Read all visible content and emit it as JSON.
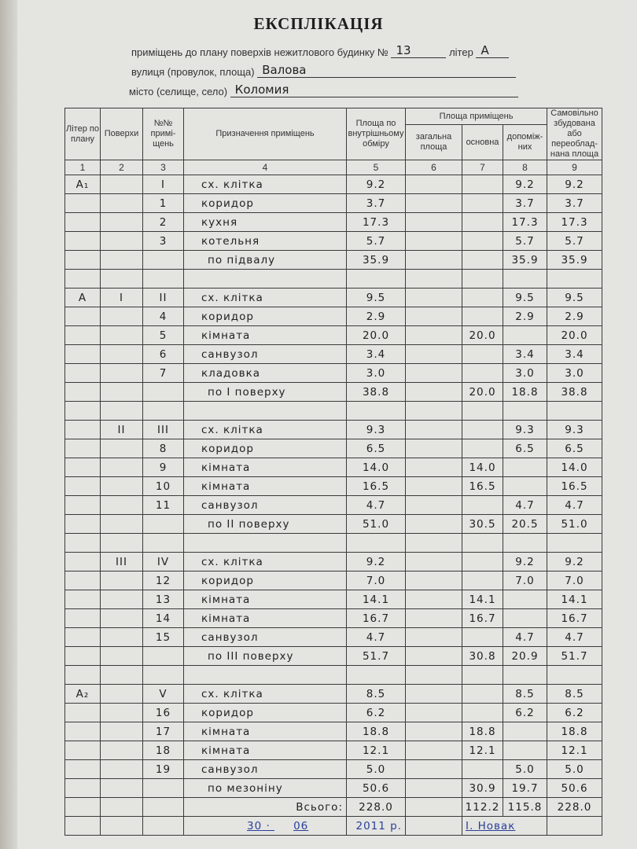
{
  "title": "ЕКСПЛІКАЦІЯ",
  "header": {
    "line1_label": "приміщень до плану поверхів нежитлового будинку №",
    "building_no": "13",
    "liter_label": "літер",
    "liter": "А",
    "street_label": "вулиця (провулок, площа)",
    "street": "Валова",
    "city_label": "місто (селище, село)",
    "city": "Коломия"
  },
  "table": {
    "headers": {
      "c1": "Літер по плану",
      "c2": "Поверхи",
      "c3": "№№ примі-щень",
      "c4": "Призначення приміщень",
      "c5": "Площа по внутрішньому обміру",
      "group": "Площа приміщень",
      "c6": "загальна площа",
      "c7": "основна",
      "c8": "допоміж-них",
      "c9": "Самовільно збудована або переоблад-нана площа"
    },
    "column_numbers": [
      "1",
      "2",
      "3",
      "4",
      "5",
      "6",
      "7",
      "8",
      "9"
    ],
    "rows": [
      [
        "А₁",
        "",
        "I",
        "сх. клітка",
        "9.2",
        "",
        "",
        "9.2",
        "9.2"
      ],
      [
        "",
        "",
        "1",
        "коридор",
        "3.7",
        "",
        "",
        "3.7",
        "3.7"
      ],
      [
        "",
        "",
        "2",
        "кухня",
        "17.3",
        "",
        "",
        "17.3",
        "17.3"
      ],
      [
        "",
        "",
        "3",
        "котельня",
        "5.7",
        "",
        "",
        "5.7",
        "5.7"
      ],
      [
        "",
        "",
        "",
        "по підвалу",
        "35.9",
        "",
        "",
        "35.9",
        "35.9"
      ],
      [
        "",
        "",
        "",
        "",
        "",
        "",
        "",
        "",
        ""
      ],
      [
        "А",
        "I",
        "II",
        "сх. клітка",
        "9.5",
        "",
        "",
        "9.5",
        "9.5"
      ],
      [
        "",
        "",
        "4",
        "коридор",
        "2.9",
        "",
        "",
        "2.9",
        "2.9"
      ],
      [
        "",
        "",
        "5",
        "кімната",
        "20.0",
        "",
        "20.0",
        "",
        "20.0"
      ],
      [
        "",
        "",
        "6",
        "санвузол",
        "3.4",
        "",
        "",
        "3.4",
        "3.4"
      ],
      [
        "",
        "",
        "7",
        "кладовка",
        "3.0",
        "",
        "",
        "3.0",
        "3.0"
      ],
      [
        "",
        "",
        "",
        "по I поверху",
        "38.8",
        "",
        "20.0",
        "18.8",
        "38.8"
      ],
      [
        "",
        "",
        "",
        "",
        "",
        "",
        "",
        "",
        ""
      ],
      [
        "",
        "II",
        "III",
        "сх. клітка",
        "9.3",
        "",
        "",
        "9.3",
        "9.3"
      ],
      [
        "",
        "",
        "8",
        "коридор",
        "6.5",
        "",
        "",
        "6.5",
        "6.5"
      ],
      [
        "",
        "",
        "9",
        "кімната",
        "14.0",
        "",
        "14.0",
        "",
        "14.0"
      ],
      [
        "",
        "",
        "10",
        "кімната",
        "16.5",
        "",
        "16.5",
        "",
        "16.5"
      ],
      [
        "",
        "",
        "11",
        "санвузол",
        "4.7",
        "",
        "",
        "4.7",
        "4.7"
      ],
      [
        "",
        "",
        "",
        "по II поверху",
        "51.0",
        "",
        "30.5",
        "20.5",
        "51.0"
      ],
      [
        "",
        "",
        "",
        "",
        "",
        "",
        "",
        "",
        ""
      ],
      [
        "",
        "III",
        "IV",
        "сх. клітка",
        "9.2",
        "",
        "",
        "9.2",
        "9.2"
      ],
      [
        "",
        "",
        "12",
        "коридор",
        "7.0",
        "",
        "",
        "7.0",
        "7.0"
      ],
      [
        "",
        "",
        "13",
        "кімната",
        "14.1",
        "",
        "14.1",
        "",
        "14.1"
      ],
      [
        "",
        "",
        "14",
        "кімната",
        "16.7",
        "",
        "16.7",
        "",
        "16.7"
      ],
      [
        "",
        "",
        "15",
        "санвузол",
        "4.7",
        "",
        "",
        "4.7",
        "4.7"
      ],
      [
        "",
        "",
        "",
        "по III поверху",
        "51.7",
        "",
        "30.8",
        "20.9",
        "51.7"
      ],
      [
        "",
        "",
        "",
        "",
        "",
        "",
        "",
        "",
        ""
      ],
      [
        "А₂",
        "",
        "V",
        "сх. клітка",
        "8.5",
        "",
        "",
        "8.5",
        "8.5"
      ],
      [
        "",
        "",
        "16",
        "коридор",
        "6.2",
        "",
        "",
        "6.2",
        "6.2"
      ],
      [
        "",
        "",
        "17",
        "кімната",
        "18.8",
        "",
        "18.8",
        "",
        "18.8"
      ],
      [
        "",
        "",
        "18",
        "кімната",
        "12.1",
        "",
        "12.1",
        "",
        "12.1"
      ],
      [
        "",
        "",
        "19",
        "санвузол",
        "5.0",
        "",
        "",
        "5.0",
        "5.0"
      ],
      [
        "",
        "",
        "",
        "по мезоніну",
        "50.6",
        "",
        "30.9",
        "19.7",
        "50.6"
      ],
      [
        "",
        "",
        "",
        "Всього:",
        "228.0",
        "",
        "112.2",
        "115.8",
        "228.0"
      ]
    ],
    "signature": {
      "day": "30",
      "month": "06",
      "year": "2011 р.",
      "name": "І. Новак"
    }
  }
}
